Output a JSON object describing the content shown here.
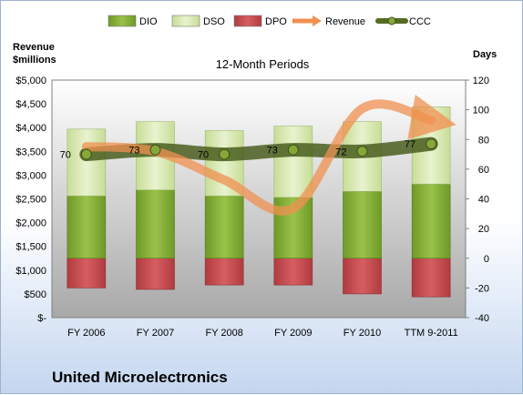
{
  "company": "United Microelectronics",
  "chart_data": {
    "type": "bar",
    "title": "12-Month Periods",
    "categories": [
      "FY 2006",
      "FY 2007",
      "FY 2008",
      "FY 2009",
      "FY 2010",
      "TTM 9-2011"
    ],
    "left_axis": {
      "label_line1": "Revenue",
      "label_line2": "$millions",
      "ticks": [
        "$-",
        "$500",
        "$1,000",
        "$1,500",
        "$2,000",
        "$2,500",
        "$3,000",
        "$3,500",
        "$4,000",
        "$4,500",
        "$5,000"
      ],
      "ylim": [
        0,
        5000
      ]
    },
    "right_axis": {
      "label": "Days",
      "ticks": [
        "-40",
        "-20",
        "0",
        "20",
        "40",
        "60",
        "80",
        "100",
        "120"
      ],
      "ylim": [
        -40,
        120
      ]
    },
    "series": [
      {
        "name": "DIO",
        "axis": "days",
        "color": "#7ea832",
        "values": [
          42,
          46,
          42,
          41,
          45,
          50
        ]
      },
      {
        "name": "DSO",
        "axis": "days",
        "color": "#d3e6a8",
        "values": [
          45,
          46,
          44,
          48,
          47,
          52
        ]
      },
      {
        "name": "DPO",
        "axis": "days",
        "color": "#c0474c",
        "values": [
          -20,
          -21,
          -18,
          -18,
          -24,
          -26
        ]
      },
      {
        "name": "Revenue",
        "axis": "revenue",
        "color": "#f09050",
        "values": [
          3600,
          3500,
          2900,
          2300,
          4400,
          4150
        ]
      },
      {
        "name": "CCC",
        "axis": "days",
        "color": "#556b22",
        "values": [
          70,
          73,
          70,
          73,
          72,
          77
        ]
      }
    ],
    "ccc_labels": [
      "70",
      "73",
      "70",
      "73",
      "72",
      "77"
    ],
    "legend": [
      "DIO",
      "DSO",
      "DPO",
      "Revenue",
      "CCC"
    ],
    "legend_position": "top",
    "grid": false
  }
}
